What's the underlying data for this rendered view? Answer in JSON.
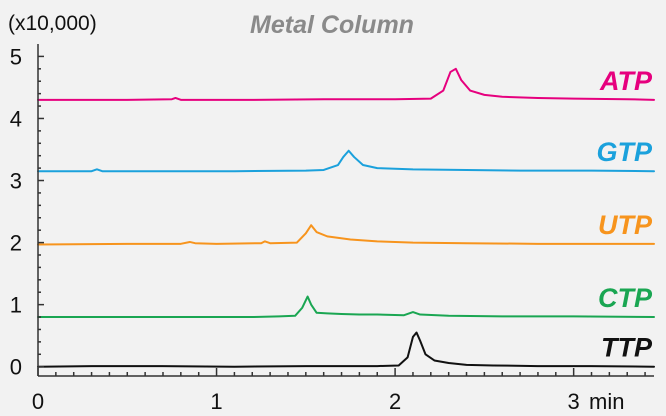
{
  "chart_data": {
    "type": "line",
    "title": "Metal Column",
    "y_multiplier_label": "(x10,000)",
    "x_unit_label": "min",
    "xlim": [
      0,
      3.45
    ],
    "ylim": [
      -0.15,
      5.2
    ],
    "x_ticks": [
      0,
      1,
      2,
      3
    ],
    "x_tick_labels": [
      "0",
      "1",
      "2",
      "3"
    ],
    "y_ticks": [
      0,
      1,
      2,
      3,
      4,
      5
    ],
    "y_tick_labels": [
      "0",
      "1",
      "2",
      "3",
      "4",
      "5"
    ],
    "grid": false,
    "series": [
      {
        "name": "TTP",
        "color": "#111111",
        "points": [
          [
            0,
            0.0
          ],
          [
            0.3,
            0.01
          ],
          [
            0.7,
            0.01
          ],
          [
            1.1,
            0.0
          ],
          [
            1.5,
            0.01
          ],
          [
            1.9,
            0.01
          ],
          [
            2.02,
            0.02
          ],
          [
            2.07,
            0.15
          ],
          [
            2.1,
            0.48
          ],
          [
            2.12,
            0.55
          ],
          [
            2.14,
            0.42
          ],
          [
            2.17,
            0.2
          ],
          [
            2.22,
            0.1
          ],
          [
            2.3,
            0.06
          ],
          [
            2.4,
            0.03
          ],
          [
            2.55,
            0.02
          ],
          [
            2.8,
            0.01
          ],
          [
            3.1,
            0.01
          ],
          [
            3.45,
            0.0
          ]
        ]
      },
      {
        "name": "CTP",
        "color": "#1aa652",
        "points": [
          [
            0,
            0.8
          ],
          [
            0.4,
            0.8
          ],
          [
            0.8,
            0.8
          ],
          [
            1.2,
            0.8
          ],
          [
            1.35,
            0.81
          ],
          [
            1.44,
            0.82
          ],
          [
            1.48,
            0.95
          ],
          [
            1.51,
            1.13
          ],
          [
            1.53,
            1.0
          ],
          [
            1.56,
            0.87
          ],
          [
            1.62,
            0.86
          ],
          [
            1.7,
            0.85
          ],
          [
            1.8,
            0.84
          ],
          [
            1.9,
            0.84
          ],
          [
            2.05,
            0.83
          ],
          [
            2.1,
            0.88
          ],
          [
            2.14,
            0.84
          ],
          [
            2.3,
            0.82
          ],
          [
            2.6,
            0.81
          ],
          [
            3.0,
            0.81
          ],
          [
            3.45,
            0.8
          ]
        ]
      },
      {
        "name": "UTP",
        "color": "#f7941d",
        "points": [
          [
            0,
            1.97
          ],
          [
            0.5,
            1.98
          ],
          [
            0.8,
            1.98
          ],
          [
            0.85,
            2.01
          ],
          [
            0.88,
            1.99
          ],
          [
            1.0,
            1.98
          ],
          [
            1.25,
            1.99
          ],
          [
            1.27,
            2.02
          ],
          [
            1.3,
            1.99
          ],
          [
            1.45,
            2.0
          ],
          [
            1.5,
            2.15
          ],
          [
            1.53,
            2.28
          ],
          [
            1.56,
            2.17
          ],
          [
            1.62,
            2.1
          ],
          [
            1.75,
            2.05
          ],
          [
            1.9,
            2.02
          ],
          [
            2.1,
            2.0
          ],
          [
            2.4,
            1.99
          ],
          [
            2.8,
            1.98
          ],
          [
            3.2,
            1.98
          ],
          [
            3.45,
            1.98
          ]
        ]
      },
      {
        "name": "GTP",
        "color": "#1ba1dc",
        "points": [
          [
            0,
            3.15
          ],
          [
            0.3,
            3.15
          ],
          [
            0.33,
            3.18
          ],
          [
            0.36,
            3.15
          ],
          [
            0.7,
            3.15
          ],
          [
            1.1,
            3.15
          ],
          [
            1.5,
            3.16
          ],
          [
            1.6,
            3.17
          ],
          [
            1.68,
            3.25
          ],
          [
            1.71,
            3.38
          ],
          [
            1.74,
            3.48
          ],
          [
            1.77,
            3.38
          ],
          [
            1.82,
            3.25
          ],
          [
            1.9,
            3.2
          ],
          [
            2.1,
            3.18
          ],
          [
            2.4,
            3.17
          ],
          [
            2.7,
            3.16
          ],
          [
            3.1,
            3.16
          ],
          [
            3.45,
            3.15
          ]
        ]
      },
      {
        "name": "ATP",
        "color": "#e6007e",
        "points": [
          [
            0,
            4.3
          ],
          [
            0.5,
            4.3
          ],
          [
            0.75,
            4.31
          ],
          [
            0.77,
            4.33
          ],
          [
            0.8,
            4.3
          ],
          [
            1.2,
            4.3
          ],
          [
            1.6,
            4.31
          ],
          [
            2.0,
            4.31
          ],
          [
            2.2,
            4.32
          ],
          [
            2.27,
            4.45
          ],
          [
            2.31,
            4.75
          ],
          [
            2.34,
            4.8
          ],
          [
            2.37,
            4.62
          ],
          [
            2.42,
            4.45
          ],
          [
            2.5,
            4.38
          ],
          [
            2.6,
            4.35
          ],
          [
            2.8,
            4.33
          ],
          [
            3.0,
            4.32
          ],
          [
            3.3,
            4.31
          ],
          [
            3.45,
            4.3
          ]
        ]
      }
    ]
  }
}
